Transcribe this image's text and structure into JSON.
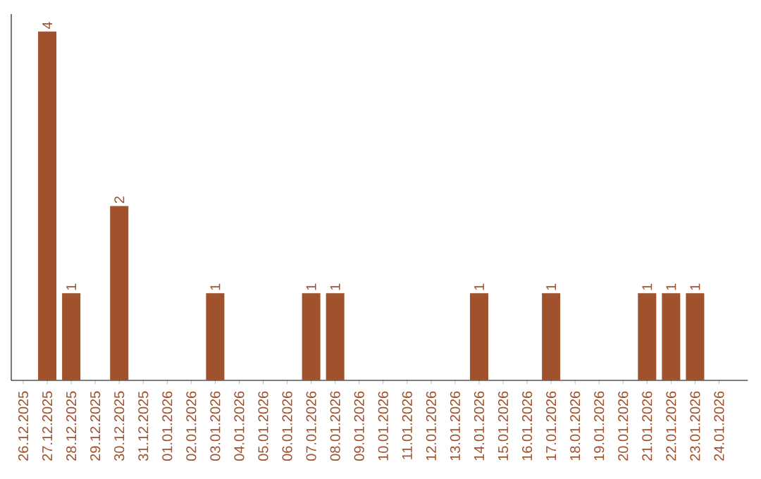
{
  "chart_data": {
    "type": "bar",
    "categories": [
      "26.12.2025",
      "27.12.2025",
      "28.12.2025",
      "29.12.2025",
      "30.12.2025",
      "31.12.2025",
      "01.01.2026",
      "02.01.2026",
      "03.01.2026",
      "04.01.2026",
      "05.01.2026",
      "06.01.2026",
      "07.01.2026",
      "08.01.2026",
      "09.01.2026",
      "10.01.2026",
      "11.01.2026",
      "12.01.2026",
      "13.01.2026",
      "14.01.2026",
      "15.01.2026",
      "16.01.2026",
      "17.01.2026",
      "18.01.2026",
      "19.01.2026",
      "20.01.2026",
      "21.01.2026",
      "22.01.2026",
      "23.01.2026",
      "24.01.2026"
    ],
    "values": [
      0,
      4,
      1,
      0,
      2,
      0,
      0,
      0,
      1,
      0,
      0,
      0,
      1,
      1,
      0,
      0,
      0,
      0,
      0,
      1,
      0,
      0,
      1,
      0,
      0,
      0,
      1,
      1,
      1,
      0
    ],
    "value_labels": [
      null,
      "4",
      "1",
      null,
      "2",
      null,
      null,
      null,
      "1",
      null,
      null,
      null,
      "1",
      "1",
      null,
      null,
      null,
      null,
      null,
      "1",
      null,
      null,
      "1",
      null,
      null,
      null,
      "1",
      "1",
      "1",
      null
    ],
    "color": "#a0522d",
    "tick_labels": "x"
  }
}
